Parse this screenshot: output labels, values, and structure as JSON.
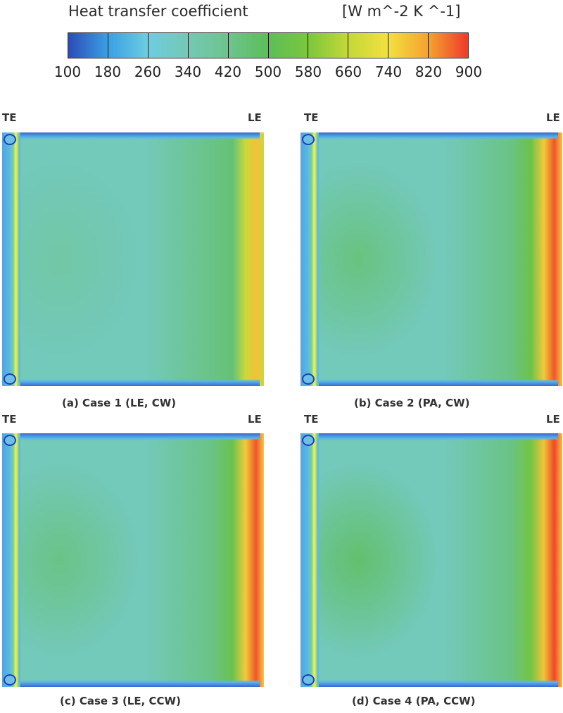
{
  "chart_data": {
    "type": "heatmap",
    "colorbar": {
      "title": "Heat transfer coefficient",
      "units": "[W m^-2 K ^-1]",
      "ticks": [
        "100",
        "180",
        "260",
        "340",
        "420",
        "500",
        "580",
        "660",
        "740",
        "820",
        "900"
      ],
      "range": [
        100,
        900
      ],
      "colors": [
        "#2b4cb8",
        "#3aa0e2",
        "#6dcde0",
        "#74c8b4",
        "#6cc48c",
        "#5cbe58",
        "#7cc63c",
        "#c4d838",
        "#f3e040",
        "#f6a230",
        "#ee3a2a"
      ]
    },
    "panels": [
      {
        "caption": "(a) Case 1 (LE, CW)",
        "te_label": "TE",
        "le_label": "LE",
        "le_peak_value": 780,
        "interior_value": 370
      },
      {
        "caption": "(b) Case 2 (PA, CW)",
        "te_label": "TE",
        "le_label": "LE",
        "le_peak_value": 880,
        "interior_value": 440
      },
      {
        "caption": "(c) Case 3 (LE, CCW)",
        "te_label": "TE",
        "le_label": "LE",
        "le_peak_value": 880,
        "interior_value": 430
      },
      {
        "caption": "(d) Case 4 (PA, CCW)",
        "te_label": "TE",
        "le_label": "LE",
        "le_peak_value": 890,
        "interior_value": 470
      }
    ]
  }
}
